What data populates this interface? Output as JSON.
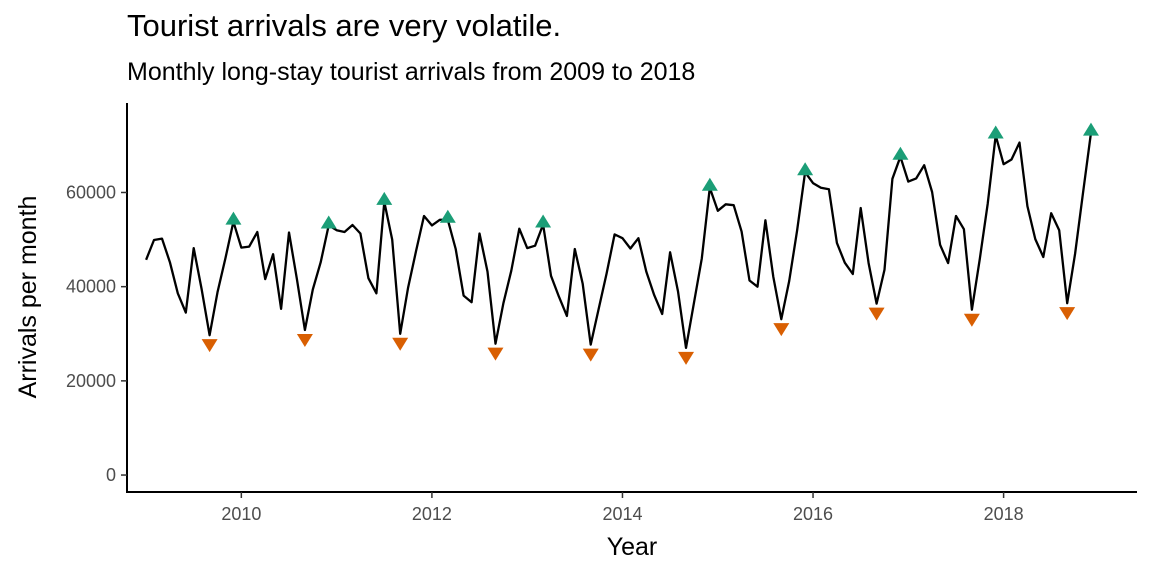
{
  "chart_data": {
    "type": "line",
    "title": "Tourist arrivals are very volatile.",
    "subtitle": "Monthly long-stay tourist arrivals from 2009 to 2018",
    "xlabel": "Year",
    "ylabel": "Arrivals per month",
    "xlim": [
      2008.8,
      2019.4
    ],
    "ylim": [
      -3600,
      79000
    ],
    "x_ticks": [
      2010,
      2012,
      2014,
      2016,
      2018
    ],
    "x_tick_labels": [
      "2010",
      "2012",
      "2014",
      "2016",
      "2018"
    ],
    "y_ticks": [
      0,
      20000,
      40000,
      60000
    ],
    "y_tick_labels": [
      "0",
      "20000",
      "40000",
      "60000"
    ],
    "grid": false,
    "line_color": "#000000",
    "peak_marker_color": "#1b9e77",
    "trough_marker_color": "#d95f02",
    "x": [
      2009.0,
      2009.083,
      2009.167,
      2009.25,
      2009.333,
      2009.417,
      2009.5,
      2009.583,
      2009.667,
      2009.75,
      2009.833,
      2009.917,
      2010.0,
      2010.083,
      2010.167,
      2010.25,
      2010.333,
      2010.417,
      2010.5,
      2010.583,
      2010.667,
      2010.75,
      2010.833,
      2010.917,
      2011.0,
      2011.083,
      2011.167,
      2011.25,
      2011.333,
      2011.417,
      2011.5,
      2011.583,
      2011.667,
      2011.75,
      2011.833,
      2011.917,
      2012.0,
      2012.083,
      2012.167,
      2012.25,
      2012.333,
      2012.417,
      2012.5,
      2012.583,
      2012.667,
      2012.75,
      2012.833,
      2012.917,
      2013.0,
      2013.083,
      2013.167,
      2013.25,
      2013.333,
      2013.417,
      2013.5,
      2013.583,
      2013.667,
      2013.75,
      2013.833,
      2013.917,
      2014.0,
      2014.083,
      2014.167,
      2014.25,
      2014.333,
      2014.417,
      2014.5,
      2014.583,
      2014.667,
      2014.75,
      2014.833,
      2014.917,
      2015.0,
      2015.083,
      2015.167,
      2015.25,
      2015.333,
      2015.417,
      2015.5,
      2015.583,
      2015.667,
      2015.75,
      2015.833,
      2015.917,
      2016.0,
      2016.083,
      2016.167,
      2016.25,
      2016.333,
      2016.417,
      2016.5,
      2016.583,
      2016.667,
      2016.75,
      2016.833,
      2016.917,
      2017.0,
      2017.083,
      2017.167,
      2017.25,
      2017.333,
      2017.417,
      2017.5,
      2017.583,
      2017.667,
      2017.75,
      2017.833,
      2017.917,
      2018.0,
      2018.083,
      2018.167,
      2018.25,
      2018.333,
      2018.417,
      2018.5,
      2018.583,
      2018.667,
      2018.75,
      2018.833,
      2018.917
    ],
    "values": [
      45700,
      49900,
      50200,
      45200,
      38600,
      34500,
      48200,
      39500,
      29700,
      38800,
      46000,
      53800,
      48300,
      48500,
      51600,
      41600,
      46900,
      35300,
      51500,
      41600,
      30800,
      39400,
      45200,
      53000,
      52000,
      51600,
      53100,
      51300,
      41800,
      38600,
      58000,
      50000,
      30000,
      39800,
      47500,
      55000,
      53000,
      54200,
      54200,
      48000,
      38100,
      36700,
      51300,
      43200,
      27900,
      36500,
      43400,
      52300,
      48200,
      48700,
      53200,
      42300,
      37900,
      33800,
      48000,
      40600,
      27700,
      35300,
      42800,
      51100,
      50300,
      48100,
      50300,
      43200,
      38200,
      34200,
      47300,
      39000,
      27000,
      36500,
      46000,
      61000,
      56100,
      57500,
      57300,
      51700,
      41300,
      40000,
      54100,
      42100,
      33100,
      41200,
      51900,
      64300,
      62000,
      61000,
      60700,
      49300,
      45100,
      42700,
      56700,
      45000,
      36400,
      43600,
      62900,
      67600,
      62300,
      63000,
      65800,
      60100,
      48900,
      45000,
      55000,
      52200,
      35100,
      45900,
      57600,
      72100,
      66000,
      67000,
      70600,
      57100,
      50100,
      46300,
      55600,
      52000,
      36500,
      47000,
      59900,
      72700
    ],
    "peaks": [
      {
        "x": 2009.917,
        "y": 53800
      },
      {
        "x": 2010.917,
        "y": 53000
      },
      {
        "x": 2011.5,
        "y": 58000
      },
      {
        "x": 2012.167,
        "y": 54200
      },
      {
        "x": 2013.167,
        "y": 53200
      },
      {
        "x": 2014.917,
        "y": 61000
      },
      {
        "x": 2015.917,
        "y": 64300
      },
      {
        "x": 2016.917,
        "y": 67600
      },
      {
        "x": 2017.917,
        "y": 72100
      },
      {
        "x": 2018.917,
        "y": 72700
      }
    ],
    "troughs": [
      {
        "x": 2009.667,
        "y": 29700
      },
      {
        "x": 2010.667,
        "y": 30800
      },
      {
        "x": 2011.667,
        "y": 30000
      },
      {
        "x": 2012.667,
        "y": 27900
      },
      {
        "x": 2013.667,
        "y": 27700
      },
      {
        "x": 2014.667,
        "y": 27000
      },
      {
        "x": 2015.667,
        "y": 33100
      },
      {
        "x": 2016.667,
        "y": 36400
      },
      {
        "x": 2017.667,
        "y": 35100
      },
      {
        "x": 2018.667,
        "y": 36500
      }
    ]
  }
}
